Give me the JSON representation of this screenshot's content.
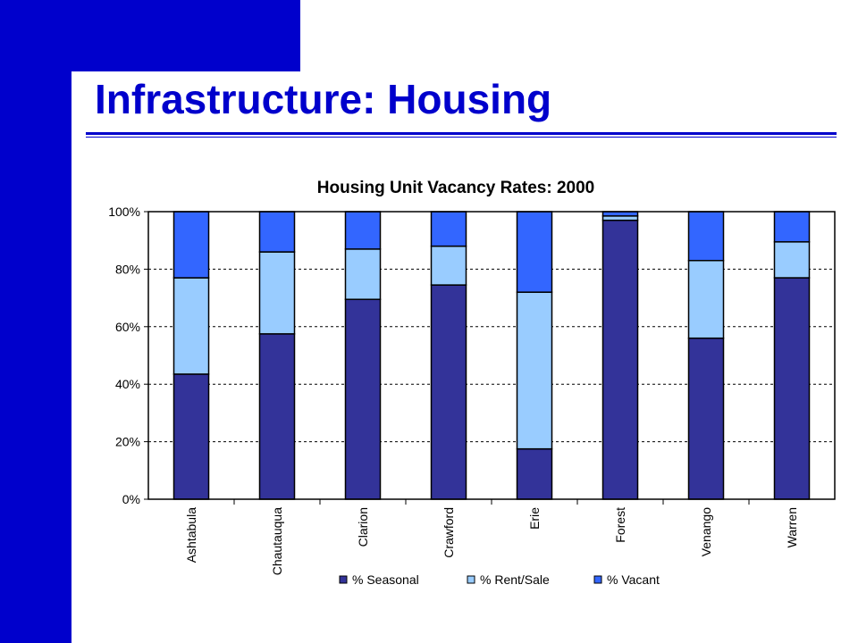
{
  "slide": {
    "title": "Infrastructure:  Housing",
    "brand_color": "#0000cc"
  },
  "chart_data": {
    "type": "bar",
    "stacked": true,
    "title": "Housing Unit Vacancy Rates: 2000",
    "xlabel": "",
    "ylabel": "",
    "ylim": [
      0,
      100
    ],
    "y_ticks": [
      "0%",
      "20%",
      "40%",
      "60%",
      "80%",
      "100%"
    ],
    "grid": true,
    "legend_position": "bottom",
    "categories": [
      "Ashtabula",
      "Chautauqua",
      "Clarion",
      "Crawford",
      "Erie",
      "Forest",
      "Venango",
      "Warren"
    ],
    "series": [
      {
        "name": "% Seasonal",
        "color": "#333399",
        "values": [
          43.5,
          57.5,
          69.5,
          74.5,
          17.5,
          97,
          56,
          77
        ]
      },
      {
        "name": "% Rent/Sale",
        "color": "#99ccff",
        "values": [
          33.5,
          28.5,
          17.5,
          13.5,
          54.5,
          1.5,
          27,
          12.5
        ]
      },
      {
        "name": "% Vacant",
        "color": "#3366ff",
        "values": [
          23,
          14,
          13,
          12,
          28,
          1.5,
          17,
          10.5
        ]
      }
    ]
  }
}
